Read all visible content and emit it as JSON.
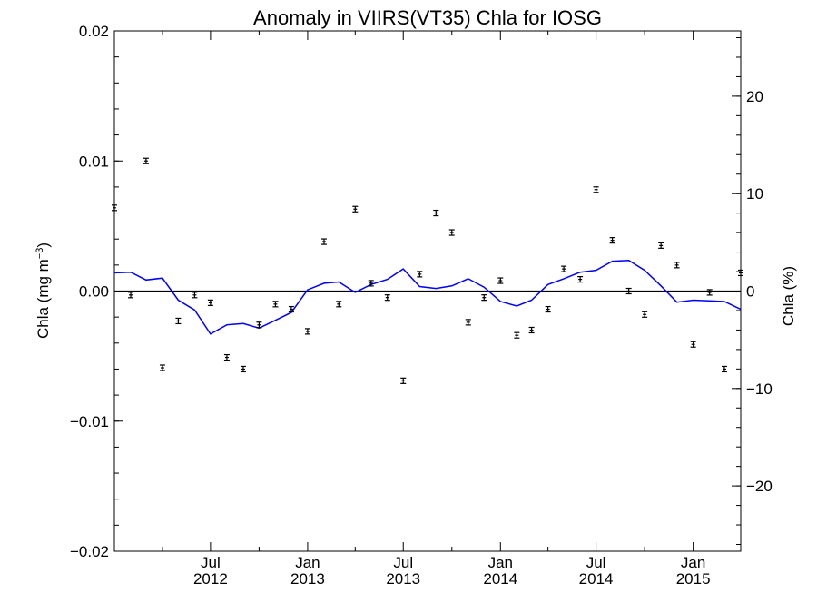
{
  "chart_data": {
    "type": "scatter",
    "title": "Anomaly in VIIRS(VT35) Chla for IOSG",
    "ylabel_left": "Chla (mg m",
    "ylabel_left_superscript": "−3",
    "ylabel_left_close": ")",
    "ylabel_right": "Chla (%)",
    "ylim_left": [
      -0.02,
      0.02
    ],
    "ylim_right": [
      -26.7,
      26.7
    ],
    "xlim": [
      "2012-01-01",
      "2015-04-01"
    ],
    "yticks_left": [
      {
        "value": 0.02,
        "label": "0.02"
      },
      {
        "value": 0.01,
        "label": "0.01"
      },
      {
        "value": 0.0,
        "label": "0.00"
      },
      {
        "value": -0.01,
        "label": "−0.01"
      },
      {
        "value": -0.02,
        "label": "−0.02"
      }
    ],
    "yticks_right": [
      {
        "value": 20,
        "label": "20"
      },
      {
        "value": 10,
        "label": "10"
      },
      {
        "value": 0,
        "label": "0"
      },
      {
        "value": -10,
        "label": "−10"
      },
      {
        "value": -20,
        "label": "−20"
      }
    ],
    "xticks": [
      {
        "date": "2012-07-01",
        "month": "Jul",
        "year": "2012"
      },
      {
        "date": "2013-01-01",
        "month": "Jan",
        "year": "2013"
      },
      {
        "date": "2013-07-01",
        "month": "Jul",
        "year": "2013"
      },
      {
        "date": "2014-01-01",
        "month": "Jan",
        "year": "2014"
      },
      {
        "date": "2014-07-01",
        "month": "Jul",
        "year": "2014"
      },
      {
        "date": "2015-01-01",
        "month": "Jan",
        "year": "2015"
      }
    ],
    "minor_xticks": [
      "2012-04-01",
      "2012-10-01",
      "2013-04-01",
      "2013-10-01",
      "2014-04-01",
      "2014-10-01"
    ],
    "zero_line": 0,
    "series": [
      {
        "kind": "points_with_error_bars",
        "color": "#000000",
        "points": [
          {
            "x": "2012-01-01",
            "y": 0.0064
          },
          {
            "x": "2012-02-01",
            "y": -0.0003
          },
          {
            "x": "2012-03-01",
            "y": 0.01
          },
          {
            "x": "2012-04-01",
            "y": -0.0059
          },
          {
            "x": "2012-05-01",
            "y": -0.0023
          },
          {
            "x": "2012-06-01",
            "y": -0.0003
          },
          {
            "x": "2012-07-01",
            "y": -0.0009
          },
          {
            "x": "2012-08-01",
            "y": -0.0051
          },
          {
            "x": "2012-09-01",
            "y": -0.006
          },
          {
            "x": "2012-10-01",
            "y": -0.0026
          },
          {
            "x": "2012-11-01",
            "y": -0.001
          },
          {
            "x": "2012-12-01",
            "y": -0.0014
          },
          {
            "x": "2013-01-01",
            "y": -0.0031
          },
          {
            "x": "2013-02-01",
            "y": 0.0038
          },
          {
            "x": "2013-03-01",
            "y": -0.001
          },
          {
            "x": "2013-04-01",
            "y": 0.0063
          },
          {
            "x": "2013-05-01",
            "y": 0.0006
          },
          {
            "x": "2013-06-01",
            "y": -0.0005
          },
          {
            "x": "2013-07-01",
            "y": -0.0069
          },
          {
            "x": "2013-08-01",
            "y": 0.0013
          },
          {
            "x": "2013-09-01",
            "y": 0.006
          },
          {
            "x": "2013-10-01",
            "y": 0.0045
          },
          {
            "x": "2013-11-01",
            "y": -0.0024
          },
          {
            "x": "2013-12-01",
            "y": -0.0005
          },
          {
            "x": "2014-01-01",
            "y": 0.0008
          },
          {
            "x": "2014-02-01",
            "y": -0.0034
          },
          {
            "x": "2014-03-01",
            "y": -0.003
          },
          {
            "x": "2014-04-01",
            "y": -0.0014
          },
          {
            "x": "2014-05-01",
            "y": 0.0017
          },
          {
            "x": "2014-06-01",
            "y": 0.0009
          },
          {
            "x": "2014-07-01",
            "y": 0.0078
          },
          {
            "x": "2014-08-01",
            "y": 0.0039
          },
          {
            "x": "2014-09-01",
            "y": 0.0
          },
          {
            "x": "2014-10-01",
            "y": -0.0018
          },
          {
            "x": "2014-11-01",
            "y": 0.0035
          },
          {
            "x": "2014-12-01",
            "y": 0.002
          },
          {
            "x": "2015-01-01",
            "y": -0.0041
          },
          {
            "x": "2015-02-01",
            "y": -0.0001
          },
          {
            "x": "2015-03-01",
            "y": -0.006
          },
          {
            "x": "2015-04-01",
            "y": 0.0014
          }
        ]
      },
      {
        "kind": "line",
        "color": "#0000ff",
        "points": [
          {
            "x": "2012-01-01",
            "y": 0.0014
          },
          {
            "x": "2012-02-01",
            "y": 0.00145
          },
          {
            "x": "2012-03-01",
            "y": 0.00085
          },
          {
            "x": "2012-04-01",
            "y": 0.001
          },
          {
            "x": "2012-05-01",
            "y": -0.0007
          },
          {
            "x": "2012-06-01",
            "y": -0.00145
          },
          {
            "x": "2012-07-01",
            "y": -0.0033
          },
          {
            "x": "2012-08-01",
            "y": -0.0026
          },
          {
            "x": "2012-09-01",
            "y": -0.0025
          },
          {
            "x": "2012-10-01",
            "y": -0.00285
          },
          {
            "x": "2012-11-01",
            "y": -0.00225
          },
          {
            "x": "2012-12-01",
            "y": -0.00165
          },
          {
            "x": "2013-01-01",
            "y": 0.0001
          },
          {
            "x": "2013-02-01",
            "y": 0.0006
          },
          {
            "x": "2013-03-01",
            "y": 0.0007
          },
          {
            "x": "2013-04-01",
            "y": -0.0001
          },
          {
            "x": "2013-05-01",
            "y": 0.0005
          },
          {
            "x": "2013-06-01",
            "y": 0.0009
          },
          {
            "x": "2013-07-01",
            "y": 0.0017
          },
          {
            "x": "2013-08-01",
            "y": 0.00035
          },
          {
            "x": "2013-09-01",
            "y": 0.0002
          },
          {
            "x": "2013-10-01",
            "y": 0.0004
          },
          {
            "x": "2013-11-01",
            "y": 0.00095
          },
          {
            "x": "2013-12-01",
            "y": 0.0003
          },
          {
            "x": "2014-01-01",
            "y": -0.0008
          },
          {
            "x": "2014-02-01",
            "y": -0.00115
          },
          {
            "x": "2014-03-01",
            "y": -0.0007
          },
          {
            "x": "2014-04-01",
            "y": 0.0005
          },
          {
            "x": "2014-05-01",
            "y": 0.00095
          },
          {
            "x": "2014-06-01",
            "y": 0.00145
          },
          {
            "x": "2014-07-01",
            "y": 0.0016
          },
          {
            "x": "2014-08-01",
            "y": 0.0023
          },
          {
            "x": "2014-09-01",
            "y": 0.00235
          },
          {
            "x": "2014-10-01",
            "y": 0.0016
          },
          {
            "x": "2014-11-01",
            "y": 0.0004
          },
          {
            "x": "2014-12-01",
            "y": -0.00085
          },
          {
            "x": "2015-01-01",
            "y": -0.0007
          },
          {
            "x": "2015-02-01",
            "y": -0.00075
          },
          {
            "x": "2015-03-01",
            "y": -0.0008
          },
          {
            "x": "2015-04-01",
            "y": -0.0014
          }
        ]
      }
    ]
  }
}
